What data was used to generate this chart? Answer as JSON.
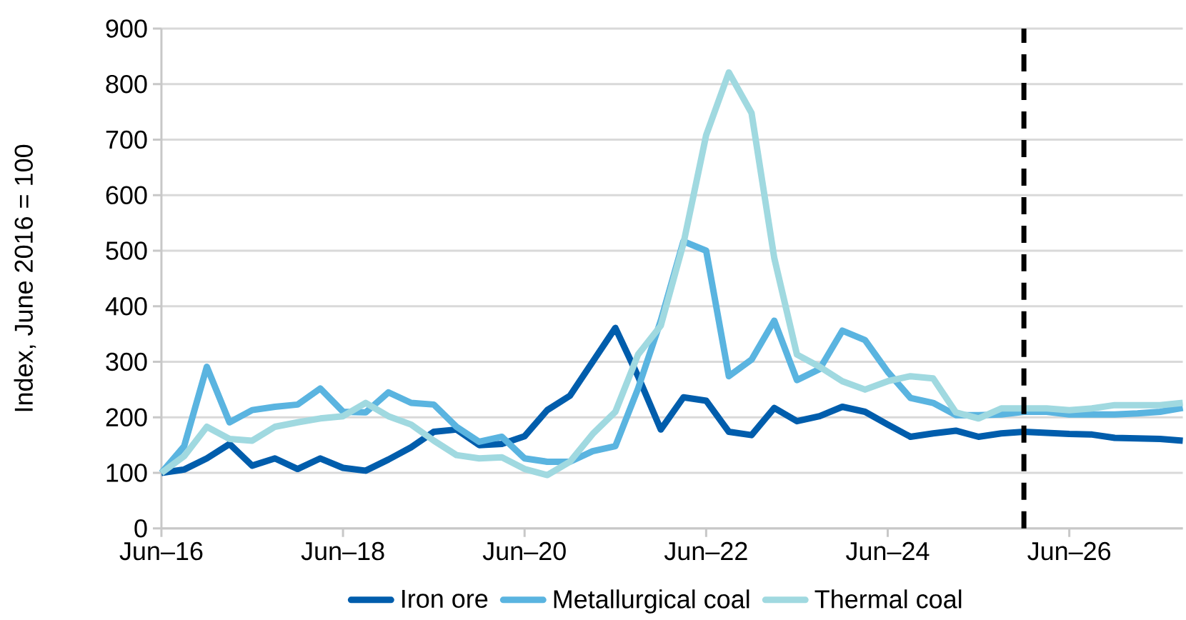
{
  "chart_data": {
    "type": "line",
    "ylabel": "Index, June 2016 = 100",
    "x": [
      "2016-06",
      "2016-09",
      "2016-12",
      "2017-03",
      "2017-06",
      "2017-09",
      "2017-12",
      "2018-03",
      "2018-06",
      "2018-09",
      "2018-12",
      "2019-03",
      "2019-06",
      "2019-09",
      "2019-12",
      "2020-03",
      "2020-06",
      "2020-09",
      "2020-12",
      "2021-03",
      "2021-06",
      "2021-09",
      "2021-12",
      "2022-03",
      "2022-06",
      "2022-09",
      "2022-12",
      "2023-03",
      "2023-06",
      "2023-09",
      "2023-12",
      "2024-03",
      "2024-06",
      "2024-09",
      "2024-12",
      "2025-03",
      "2025-06",
      "2025-09",
      "2025-12",
      "2026-03",
      "2026-06",
      "2026-09",
      "2026-12",
      "2027-03",
      "2027-06",
      "2027-09"
    ],
    "series": [
      {
        "name": "Iron ore",
        "color": "#005dac",
        "values": [
          100,
          106,
          126,
          152,
          113,
          126,
          107,
          126,
          109,
          104,
          124,
          146,
          174,
          178,
          150,
          152,
          166,
          213,
          239,
          300,
          361,
          274,
          178,
          236,
          230,
          174,
          168,
          217,
          193,
          202,
          219,
          210,
          187,
          165,
          171,
          176,
          165,
          171,
          174,
          172,
          170,
          169,
          163,
          162,
          161,
          158
        ]
      },
      {
        "name": "Metallurgical coal",
        "color": "#5ab4e0",
        "values": [
          100,
          148,
          291,
          191,
          213,
          219,
          223,
          252,
          210,
          209,
          245,
          226,
          223,
          183,
          156,
          165,
          126,
          120,
          120,
          139,
          148,
          252,
          374,
          517,
          500,
          274,
          304,
          374,
          267,
          287,
          356,
          339,
          282,
          235,
          226,
          204,
          204,
          205,
          210,
          210,
          205,
          205,
          205,
          207,
          210,
          217
        ]
      },
      {
        "name": "Thermal coal",
        "color": "#a0d9e0",
        "values": [
          100,
          130,
          183,
          161,
          158,
          183,
          191,
          198,
          202,
          226,
          202,
          187,
          158,
          132,
          126,
          128,
          107,
          96,
          120,
          170,
          210,
          313,
          365,
          513,
          708,
          821,
          748,
          487,
          313,
          291,
          265,
          250,
          265,
          274,
          270,
          209,
          198,
          216,
          216,
          216,
          213,
          216,
          222,
          222,
          222,
          226
        ]
      }
    ],
    "xlim": [
      "2016-06",
      "2027-09"
    ],
    "xticks": [
      {
        "value": "2016-06",
        "label": "Jun–16"
      },
      {
        "value": "2018-06",
        "label": "Jun–18"
      },
      {
        "value": "2020-06",
        "label": "Jun–20"
      },
      {
        "value": "2022-06",
        "label": "Jun–22"
      },
      {
        "value": "2024-06",
        "label": "Jun–24"
      },
      {
        "value": "2026-06",
        "label": "Jun–26"
      }
    ],
    "ylim": [
      0,
      900
    ],
    "yticks": [
      0,
      100,
      200,
      300,
      400,
      500,
      600,
      700,
      800,
      900
    ],
    "ref_lines": [
      {
        "axis": "x",
        "value": "2025-12",
        "color": "#000000",
        "line_style": "dashed"
      }
    ],
    "grid": "y",
    "legend": "bottom",
    "marker": "none",
    "line_style": "solid"
  }
}
